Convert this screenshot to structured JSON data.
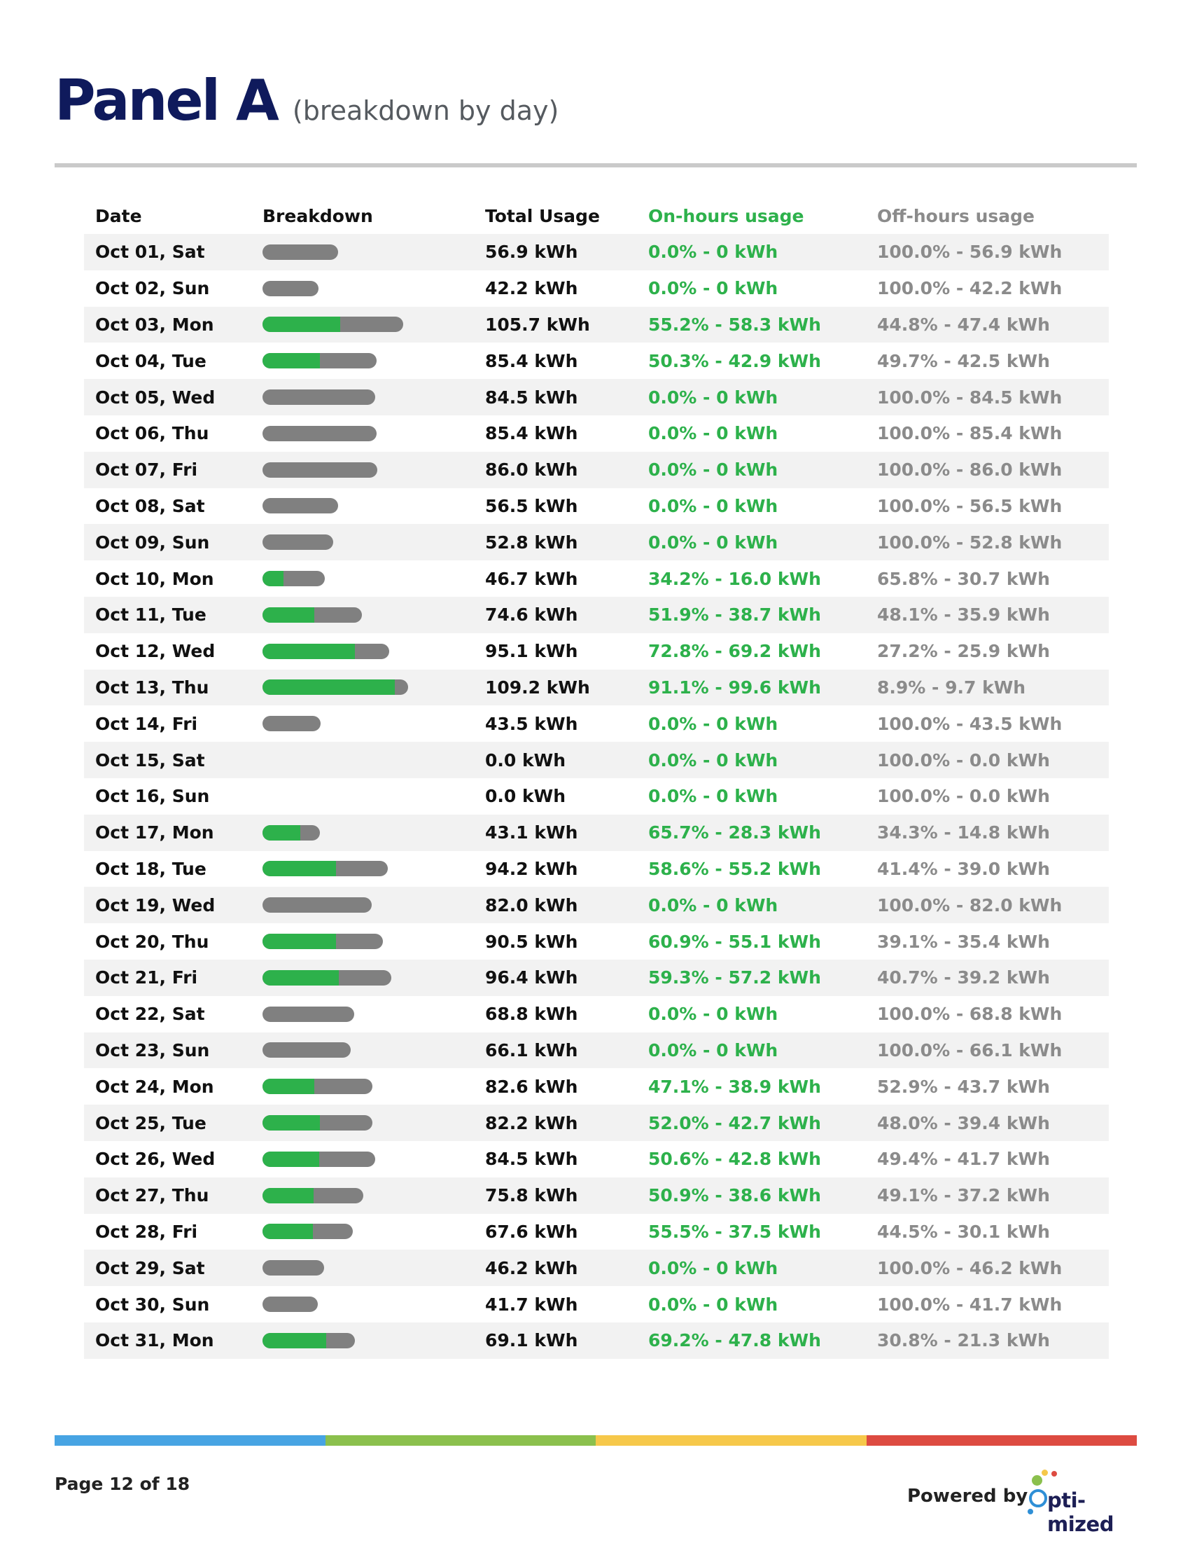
{
  "header": {
    "title": "Panel A",
    "subtitle": "(breakdown by day)"
  },
  "columns": {
    "date": "Date",
    "breakdown": "Breakdown",
    "total": "Total Usage",
    "on": "On-hours usage",
    "off": "Off-hours usage"
  },
  "colors": {
    "title": "#0f1a5c",
    "on_hours": "#2db14b",
    "off_hours": "#808080",
    "off_text": "#8b8b8b",
    "stripe_blue": "#47a4e3",
    "stripe_green": "#8bc04d",
    "stripe_yellow": "#f6c84a",
    "stripe_red": "#dd4b41"
  },
  "rows": [
    {
      "date": "Oct 01, Sat",
      "total_kwh": 56.9,
      "on_pct": 0.0,
      "total": "56.9 kWh",
      "on": "0.0% - 0 kWh",
      "off": "100.0% - 56.9 kWh"
    },
    {
      "date": "Oct 02, Sun",
      "total_kwh": 42.2,
      "on_pct": 0.0,
      "total": "42.2 kWh",
      "on": "0.0% - 0 kWh",
      "off": "100.0% - 42.2 kWh"
    },
    {
      "date": "Oct 03, Mon",
      "total_kwh": 105.7,
      "on_pct": 55.2,
      "total": "105.7 kWh",
      "on": "55.2% - 58.3 kWh",
      "off": "44.8% - 47.4 kWh"
    },
    {
      "date": "Oct 04, Tue",
      "total_kwh": 85.4,
      "on_pct": 50.3,
      "total": "85.4 kWh",
      "on": "50.3% - 42.9 kWh",
      "off": "49.7% - 42.5 kWh"
    },
    {
      "date": "Oct 05, Wed",
      "total_kwh": 84.5,
      "on_pct": 0.0,
      "total": "84.5 kWh",
      "on": "0.0% - 0 kWh",
      "off": "100.0% - 84.5 kWh"
    },
    {
      "date": "Oct 06, Thu",
      "total_kwh": 85.4,
      "on_pct": 0.0,
      "total": "85.4 kWh",
      "on": "0.0% - 0 kWh",
      "off": "100.0% - 85.4 kWh"
    },
    {
      "date": "Oct 07, Fri",
      "total_kwh": 86.0,
      "on_pct": 0.0,
      "total": "86.0 kWh",
      "on": "0.0% - 0 kWh",
      "off": "100.0% - 86.0 kWh"
    },
    {
      "date": "Oct 08, Sat",
      "total_kwh": 56.5,
      "on_pct": 0.0,
      "total": "56.5 kWh",
      "on": "0.0% - 0 kWh",
      "off": "100.0% - 56.5 kWh"
    },
    {
      "date": "Oct 09, Sun",
      "total_kwh": 52.8,
      "on_pct": 0.0,
      "total": "52.8 kWh",
      "on": "0.0% - 0 kWh",
      "off": "100.0% - 52.8 kWh"
    },
    {
      "date": "Oct 10, Mon",
      "total_kwh": 46.7,
      "on_pct": 34.2,
      "total": "46.7 kWh",
      "on": "34.2% - 16.0 kWh",
      "off": "65.8% - 30.7 kWh"
    },
    {
      "date": "Oct 11, Tue",
      "total_kwh": 74.6,
      "on_pct": 51.9,
      "total": "74.6 kWh",
      "on": "51.9% - 38.7 kWh",
      "off": "48.1% - 35.9 kWh"
    },
    {
      "date": "Oct 12, Wed",
      "total_kwh": 95.1,
      "on_pct": 72.8,
      "total": "95.1 kWh",
      "on": "72.8% - 69.2 kWh",
      "off": "27.2% - 25.9 kWh"
    },
    {
      "date": "Oct 13, Thu",
      "total_kwh": 109.2,
      "on_pct": 91.1,
      "total": "109.2 kWh",
      "on": "91.1% - 99.6 kWh",
      "off": "8.9% - 9.7 kWh"
    },
    {
      "date": "Oct 14, Fri",
      "total_kwh": 43.5,
      "on_pct": 0.0,
      "total": "43.5 kWh",
      "on": "0.0% - 0 kWh",
      "off": "100.0% - 43.5 kWh"
    },
    {
      "date": "Oct 15, Sat",
      "total_kwh": 0.0,
      "on_pct": 0.0,
      "total": "0.0 kWh",
      "on": "0.0% - 0 kWh",
      "off": "100.0% - 0.0 kWh"
    },
    {
      "date": "Oct 16, Sun",
      "total_kwh": 0.0,
      "on_pct": 0.0,
      "total": "0.0 kWh",
      "on": "0.0% - 0 kWh",
      "off": "100.0% - 0.0 kWh"
    },
    {
      "date": "Oct 17, Mon",
      "total_kwh": 43.1,
      "on_pct": 65.7,
      "total": "43.1 kWh",
      "on": "65.7% - 28.3 kWh",
      "off": "34.3% - 14.8 kWh"
    },
    {
      "date": "Oct 18, Tue",
      "total_kwh": 94.2,
      "on_pct": 58.6,
      "total": "94.2 kWh",
      "on": "58.6% - 55.2 kWh",
      "off": "41.4% - 39.0 kWh"
    },
    {
      "date": "Oct 19, Wed",
      "total_kwh": 82.0,
      "on_pct": 0.0,
      "total": "82.0 kWh",
      "on": "0.0% - 0 kWh",
      "off": "100.0% - 82.0 kWh"
    },
    {
      "date": "Oct 20, Thu",
      "total_kwh": 90.5,
      "on_pct": 60.9,
      "total": "90.5 kWh",
      "on": "60.9% - 55.1 kWh",
      "off": "39.1% - 35.4 kWh"
    },
    {
      "date": "Oct 21, Fri",
      "total_kwh": 96.4,
      "on_pct": 59.3,
      "total": "96.4 kWh",
      "on": "59.3% - 57.2 kWh",
      "off": "40.7% - 39.2 kWh"
    },
    {
      "date": "Oct 22, Sat",
      "total_kwh": 68.8,
      "on_pct": 0.0,
      "total": "68.8 kWh",
      "on": "0.0% - 0 kWh",
      "off": "100.0% - 68.8 kWh"
    },
    {
      "date": "Oct 23, Sun",
      "total_kwh": 66.1,
      "on_pct": 0.0,
      "total": "66.1 kWh",
      "on": "0.0% - 0 kWh",
      "off": "100.0% - 66.1 kWh"
    },
    {
      "date": "Oct 24, Mon",
      "total_kwh": 82.6,
      "on_pct": 47.1,
      "total": "82.6 kWh",
      "on": "47.1% - 38.9 kWh",
      "off": "52.9% - 43.7 kWh"
    },
    {
      "date": "Oct 25, Tue",
      "total_kwh": 82.2,
      "on_pct": 52.0,
      "total": "82.2 kWh",
      "on": "52.0% - 42.7 kWh",
      "off": "48.0% - 39.4 kWh"
    },
    {
      "date": "Oct 26, Wed",
      "total_kwh": 84.5,
      "on_pct": 50.6,
      "total": "84.5 kWh",
      "on": "50.6% - 42.8 kWh",
      "off": "49.4% - 41.7 kWh"
    },
    {
      "date": "Oct 27, Thu",
      "total_kwh": 75.8,
      "on_pct": 50.9,
      "total": "75.8 kWh",
      "on": "50.9% - 38.6 kWh",
      "off": "49.1% - 37.2 kWh"
    },
    {
      "date": "Oct 28, Fri",
      "total_kwh": 67.6,
      "on_pct": 55.5,
      "total": "67.6 kWh",
      "on": "55.5% - 37.5 kWh",
      "off": "44.5% - 30.1 kWh"
    },
    {
      "date": "Oct 29, Sat",
      "total_kwh": 46.2,
      "on_pct": 0.0,
      "total": "46.2 kWh",
      "on": "0.0% - 0 kWh",
      "off": "100.0% - 46.2 kWh"
    },
    {
      "date": "Oct 30, Sun",
      "total_kwh": 41.7,
      "on_pct": 0.0,
      "total": "41.7 kWh",
      "on": "0.0% - 0 kWh",
      "off": "100.0% - 41.7 kWh"
    },
    {
      "date": "Oct 31, Mon",
      "total_kwh": 69.1,
      "on_pct": 69.2,
      "total": "69.1 kWh",
      "on": "69.2% - 47.8 kWh",
      "off": "30.8% - 21.3 kWh"
    }
  ],
  "footer": {
    "page": "Page 12 of 18",
    "powered_by": "Powered by",
    "logo_text": "pti-mized",
    "logo": "Opti-mized"
  }
}
